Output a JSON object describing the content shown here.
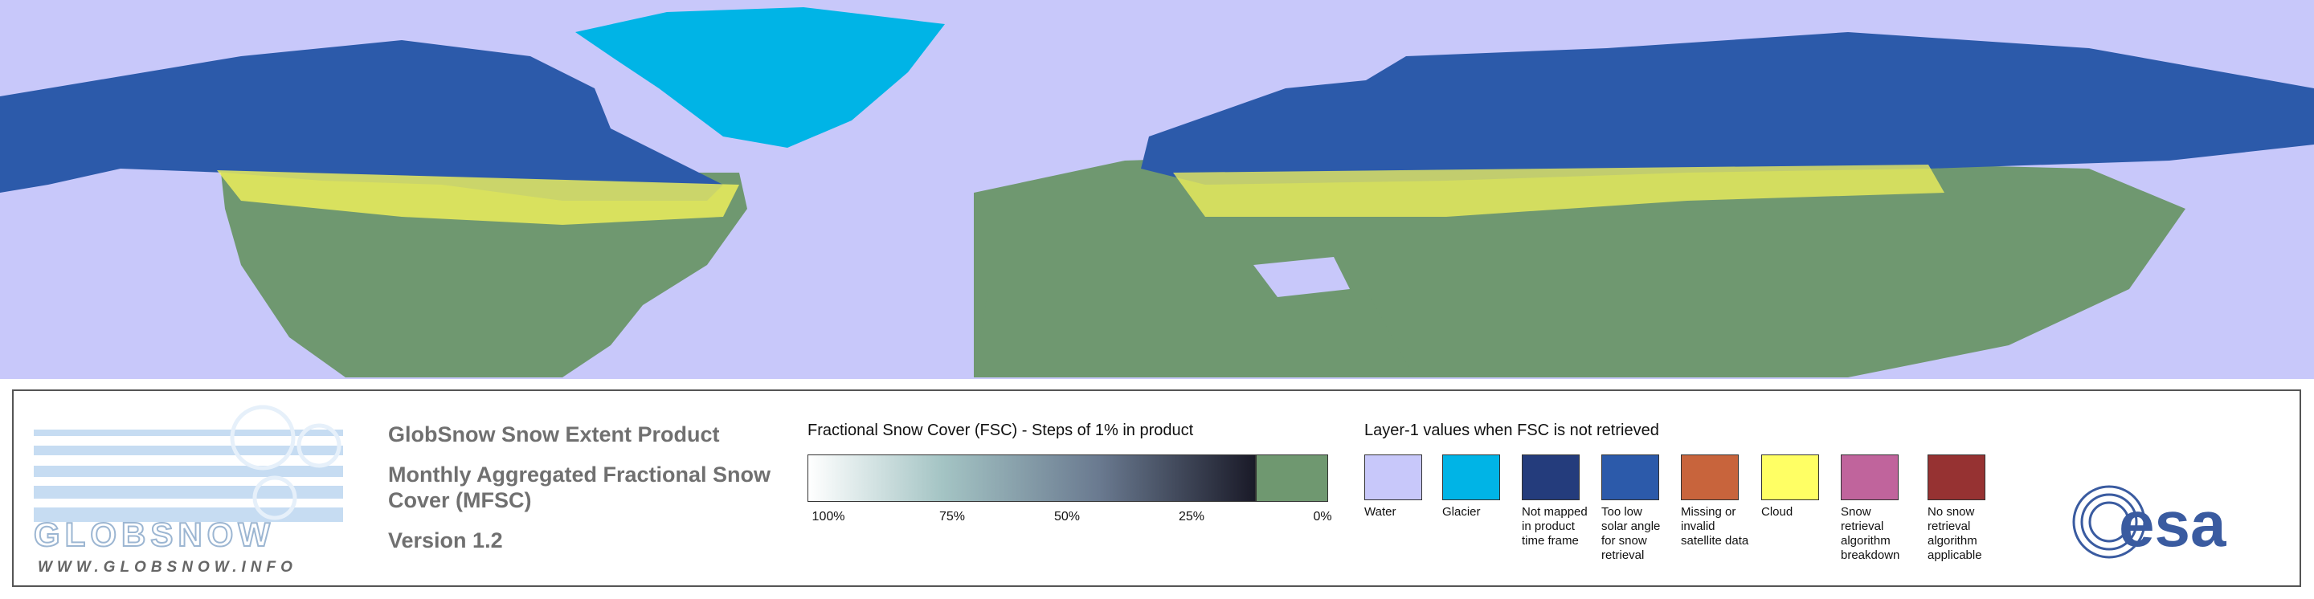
{
  "logo": {
    "wordmark": "GLOBSNOW",
    "website": "WWW.GLOBSNOW.INFO"
  },
  "product": {
    "title": "GlobSnow Snow Extent Product",
    "subtitle": "Monthly Aggregated Fractional Snow Cover (MFSC)",
    "version": "Version 1.2"
  },
  "fsc_legend": {
    "title": "Fractional Snow Cover (FSC) - Steps of 1% in product",
    "ticks": [
      "100%",
      "75%",
      "50%",
      "25%",
      "0%"
    ]
  },
  "layer1_legend": {
    "title": "Layer-1 values when FSC is not retrieved",
    "items": [
      {
        "label": "Water",
        "color": "#c8c8fa"
      },
      {
        "label": "Glacier",
        "color": "#00b4e6"
      },
      {
        "label": "Not mapped in product time frame",
        "color": "#243c7c"
      },
      {
        "label": "Too low solar angle for snow retrieval",
        "color": "#2c5aaa"
      },
      {
        "label": "Missing or invalid satellite data",
        "color": "#c8643c"
      },
      {
        "label": "Cloud",
        "color": "#ffff64"
      },
      {
        "label": "Snow retrieval algorithm breakdown",
        "color": "#c0649c"
      },
      {
        "label": "No snow retrieval algorithm applicable",
        "color": "#963232"
      }
    ]
  },
  "esa": "esa"
}
